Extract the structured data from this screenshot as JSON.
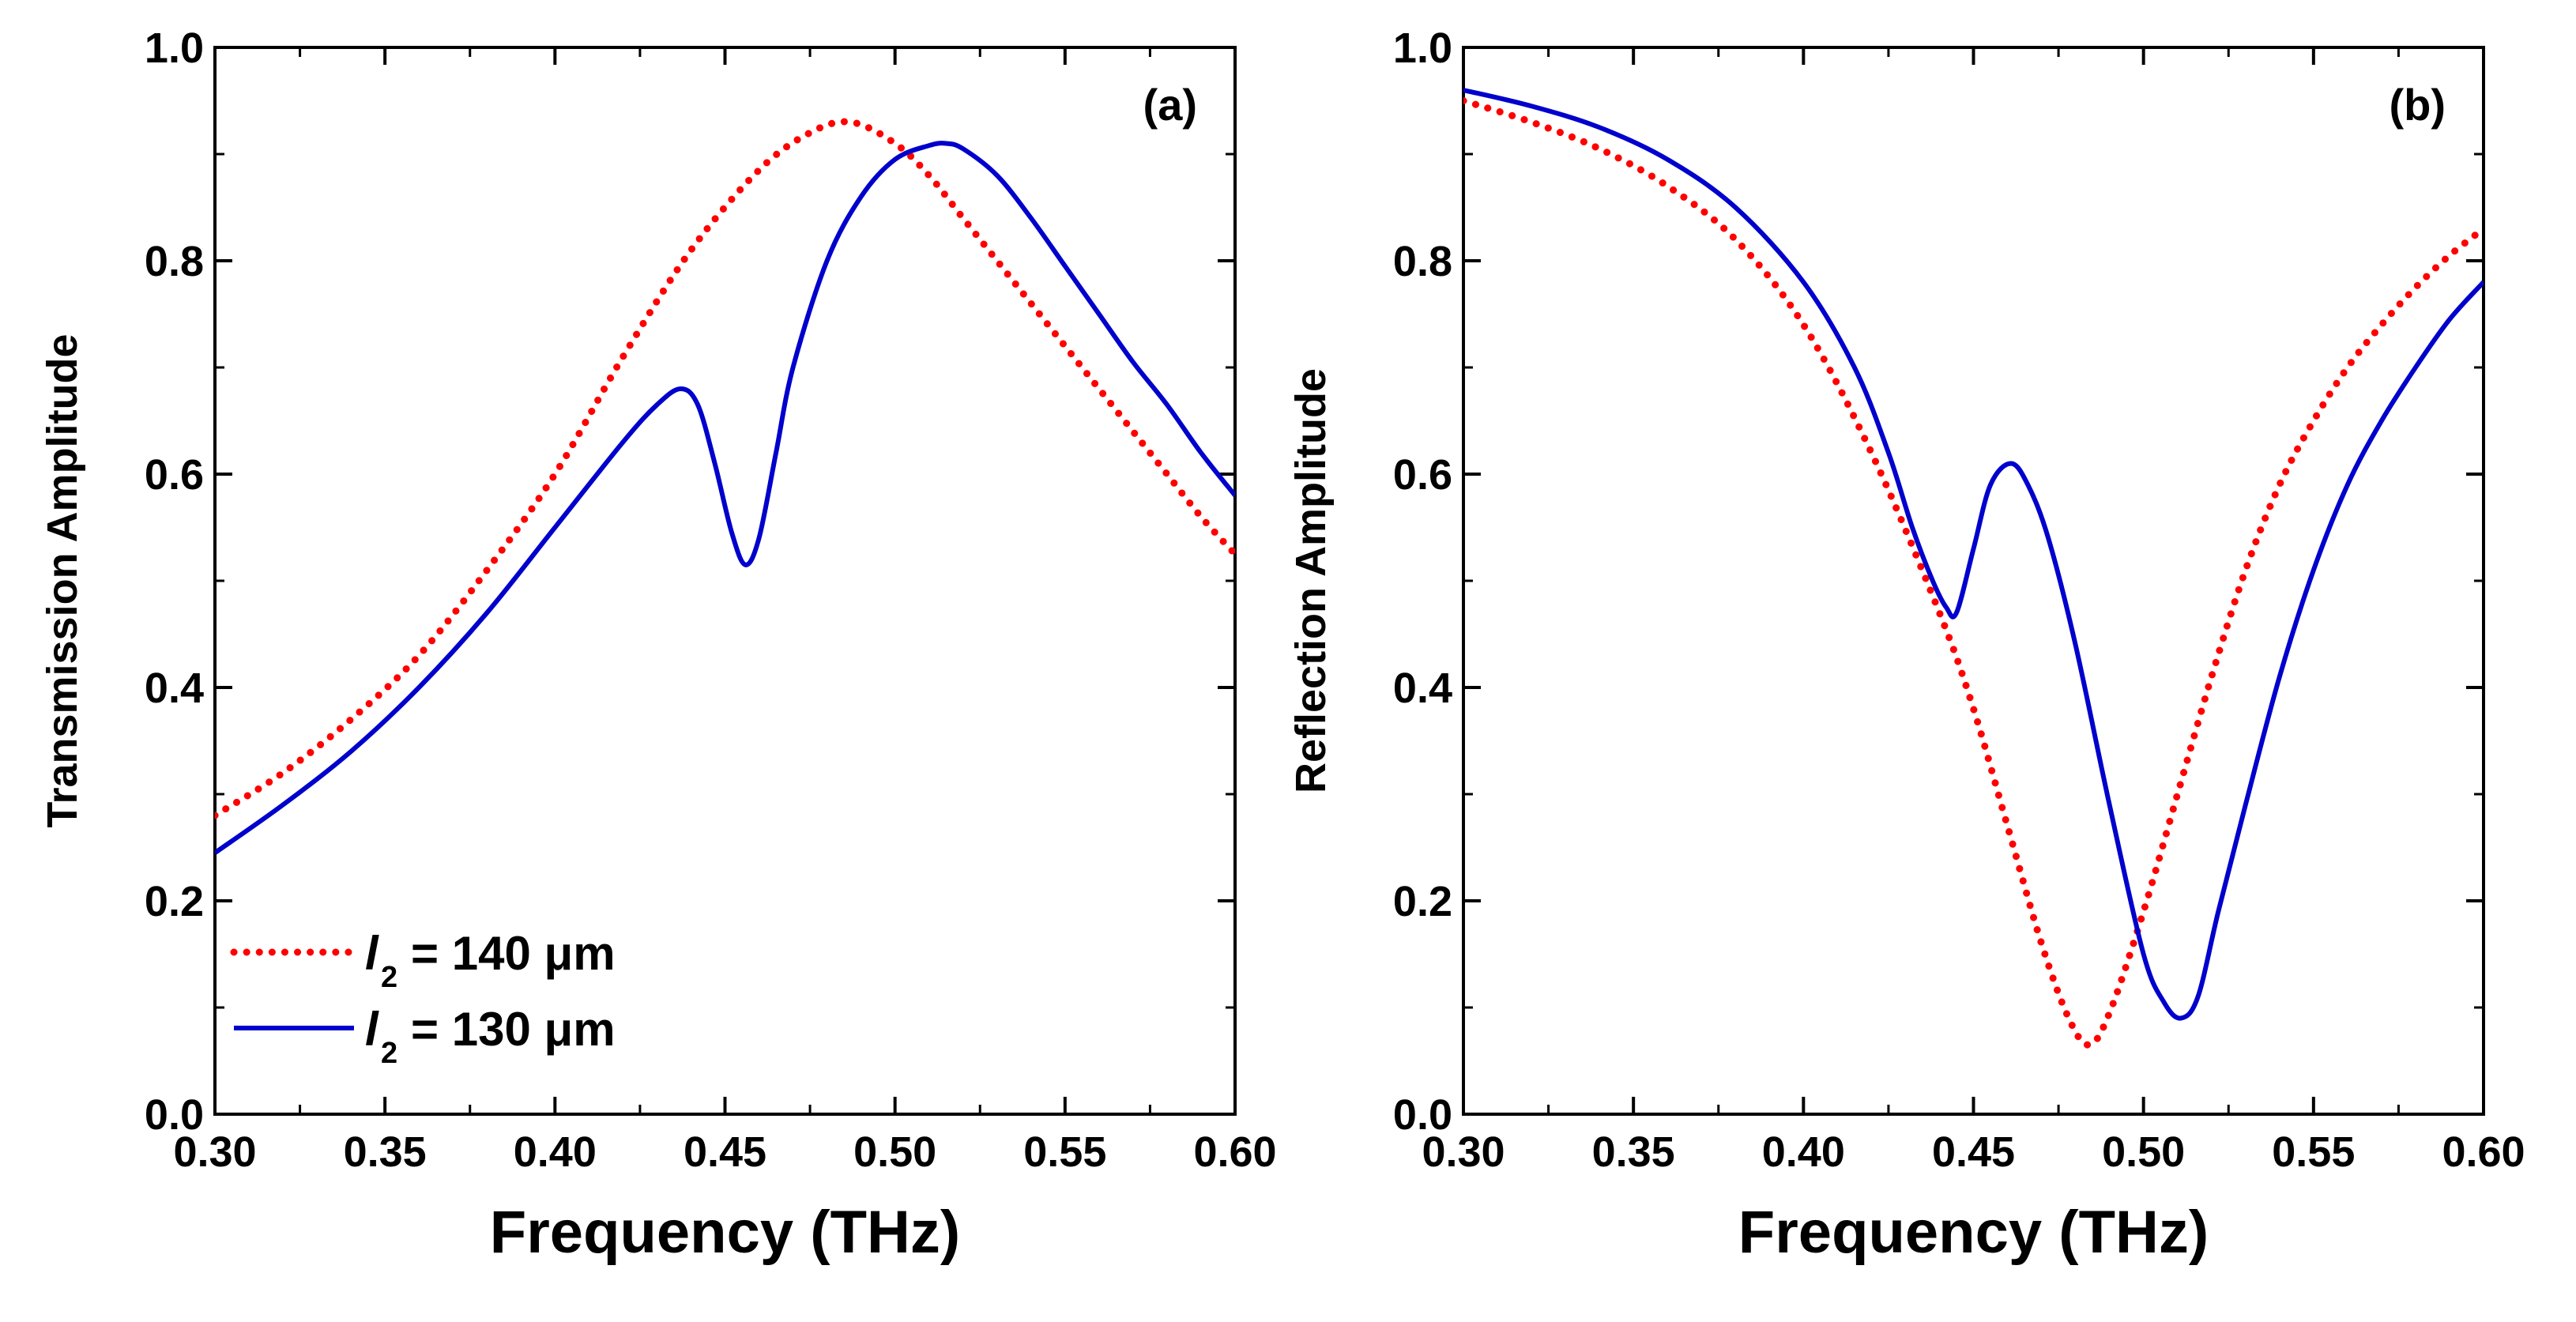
{
  "chart_data": [
    {
      "type": "line",
      "panel_label": "(a)",
      "xlabel": "Frequency (THz)",
      "ylabel": "Transmission Amplitude",
      "xlim": [
        0.3,
        0.6
      ],
      "ylim": [
        0.0,
        1.0
      ],
      "xticks": [
        "0.30",
        "0.35",
        "0.40",
        "0.45",
        "0.50",
        "0.55",
        "0.60"
      ],
      "yticks": [
        "0.0",
        "0.2",
        "0.4",
        "0.6",
        "0.8",
        "1.0"
      ],
      "legend": {
        "placement": "bottom-left",
        "entries": [
          {
            "series": 0,
            "symbol": "l",
            "subscript": "2",
            "text": "= 140 μm"
          },
          {
            "series": 1,
            "symbol": "l",
            "subscript": "2",
            "text": "= 130 μm"
          }
        ]
      },
      "series": [
        {
          "name": "l2 = 140 μm",
          "color": "#ff0000",
          "style": "dotted",
          "x": [
            0.3,
            0.32,
            0.34,
            0.36,
            0.38,
            0.4,
            0.42,
            0.44,
            0.46,
            0.475,
            0.487,
            0.5,
            0.51,
            0.52,
            0.53,
            0.54,
            0.55,
            0.56,
            0.57,
            0.58,
            0.59,
            0.6
          ],
          "y": [
            0.28,
            0.32,
            0.37,
            0.43,
            0.51,
            0.6,
            0.71,
            0.81,
            0.885,
            0.92,
            0.93,
            0.91,
            0.88,
            0.84,
            0.8,
            0.76,
            0.72,
            0.68,
            0.64,
            0.6,
            0.56,
            0.525
          ]
        },
        {
          "name": "l2 = 130 μm",
          "color": "#0000cc",
          "style": "solid",
          "x": [
            0.3,
            0.32,
            0.34,
            0.36,
            0.38,
            0.4,
            0.42,
            0.43,
            0.437,
            0.442,
            0.447,
            0.452,
            0.456,
            0.46,
            0.465,
            0.47,
            0.48,
            0.49,
            0.5,
            0.51,
            0.515,
            0.52,
            0.53,
            0.54,
            0.55,
            0.56,
            0.57,
            0.58,
            0.59,
            0.6
          ],
          "y": [
            0.245,
            0.29,
            0.34,
            0.4,
            0.47,
            0.55,
            0.63,
            0.665,
            0.68,
            0.665,
            0.61,
            0.545,
            0.515,
            0.54,
            0.62,
            0.7,
            0.8,
            0.86,
            0.895,
            0.908,
            0.91,
            0.905,
            0.88,
            0.84,
            0.795,
            0.75,
            0.705,
            0.665,
            0.62,
            0.58
          ]
        }
      ]
    },
    {
      "type": "line",
      "panel_label": "(b)",
      "xlabel": "Frequency (THz)",
      "ylabel": "Reflection Amplitude",
      "xlim": [
        0.3,
        0.6
      ],
      "ylim": [
        0.0,
        1.0
      ],
      "xticks": [
        "0.30",
        "0.35",
        "0.40",
        "0.45",
        "0.50",
        "0.55",
        "0.60"
      ],
      "yticks": [
        "0.0",
        "0.2",
        "0.4",
        "0.6",
        "0.8",
        "1.0"
      ],
      "series": [
        {
          "name": "l2 = 140 μm",
          "color": "#ff0000",
          "style": "dotted",
          "x": [
            0.3,
            0.32,
            0.34,
            0.36,
            0.38,
            0.4,
            0.42,
            0.44,
            0.45,
            0.46,
            0.47,
            0.478,
            0.484,
            0.49,
            0.5,
            0.51,
            0.52,
            0.53,
            0.54,
            0.55,
            0.56,
            0.57,
            0.58,
            0.59,
            0.6
          ],
          "y": [
            0.95,
            0.93,
            0.905,
            0.87,
            0.82,
            0.74,
            0.62,
            0.47,
            0.38,
            0.27,
            0.16,
            0.09,
            0.065,
            0.095,
            0.19,
            0.3,
            0.41,
            0.51,
            0.59,
            0.65,
            0.7,
            0.74,
            0.775,
            0.805,
            0.83
          ]
        },
        {
          "name": "l2 = 130 μm",
          "color": "#0000cc",
          "style": "solid",
          "x": [
            0.3,
            0.32,
            0.34,
            0.36,
            0.38,
            0.4,
            0.415,
            0.425,
            0.432,
            0.438,
            0.442,
            0.445,
            0.45,
            0.455,
            0.461,
            0.466,
            0.472,
            0.48,
            0.49,
            0.5,
            0.506,
            0.511,
            0.516,
            0.522,
            0.53,
            0.54,
            0.55,
            0.56,
            0.57,
            0.58,
            0.59,
            0.6
          ],
          "y": [
            0.96,
            0.945,
            0.925,
            0.895,
            0.85,
            0.78,
            0.7,
            0.62,
            0.55,
            0.5,
            0.475,
            0.47,
            0.53,
            0.59,
            0.61,
            0.59,
            0.54,
            0.44,
            0.29,
            0.15,
            0.105,
            0.09,
            0.11,
            0.19,
            0.29,
            0.41,
            0.51,
            0.59,
            0.65,
            0.7,
            0.745,
            0.78
          ]
        }
      ]
    }
  ]
}
